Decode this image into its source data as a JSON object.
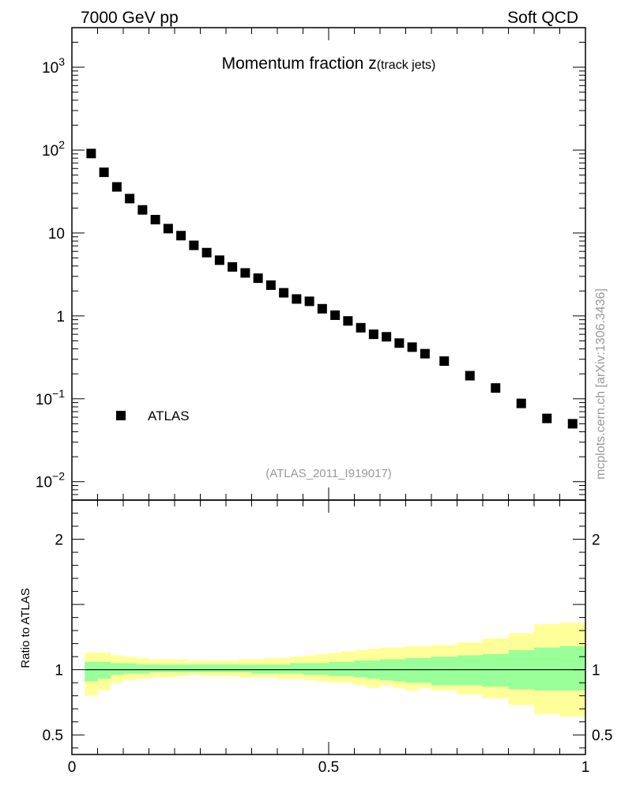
{
  "header": {
    "left_label": "7000 GeV pp",
    "right_label": "Soft QCD"
  },
  "side_label": "mcplots.cern.ch [arXiv:1306.3436]",
  "chart_data": [
    {
      "type": "scatter",
      "title_main": "Momentum fraction ",
      "title_var": "z",
      "title_sub": "(track jets)",
      "analysis_id": "(ATLAS_2011_I919017)",
      "yscale": "log",
      "xlim": [
        0,
        1
      ],
      "ylim": [
        0.006,
        3000
      ],
      "y_ticks": [
        {
          "value": 0.01,
          "base": "10",
          "exp": "−2"
        },
        {
          "value": 0.1,
          "base": "10",
          "exp": "−1"
        },
        {
          "value": 1,
          "base": "1",
          "exp": ""
        },
        {
          "value": 10,
          "base": "10",
          "exp": ""
        },
        {
          "value": 100,
          "base": "10",
          "exp": "2"
        },
        {
          "value": 1000,
          "base": "10",
          "exp": "3"
        }
      ],
      "series": [
        {
          "name": "ATLAS",
          "color": "#000000",
          "marker": "square",
          "x": [
            0.0375,
            0.0625,
            0.0875,
            0.1125,
            0.1375,
            0.1625,
            0.1875,
            0.2125,
            0.2375,
            0.2625,
            0.2875,
            0.3125,
            0.3375,
            0.3625,
            0.3875,
            0.4125,
            0.4375,
            0.4625,
            0.4875,
            0.5125,
            0.5375,
            0.5625,
            0.5875,
            0.6125,
            0.6375,
            0.6625,
            0.6875,
            0.725,
            0.775,
            0.825,
            0.875,
            0.925,
            0.975
          ],
          "y": [
            91,
            54,
            36,
            26,
            19,
            14.5,
            11.3,
            9.3,
            7.1,
            5.8,
            4.7,
            3.9,
            3.3,
            2.85,
            2.35,
            1.9,
            1.6,
            1.5,
            1.22,
            1.02,
            0.87,
            0.72,
            0.6,
            0.56,
            0.47,
            0.42,
            0.35,
            0.285,
            0.19,
            0.135,
            0.088,
            0.058,
            0.05
          ]
        }
      ],
      "legend": "bottom-left"
    },
    {
      "type": "area",
      "ylabel": "Ratio to ATLAS",
      "xlim": [
        0,
        1
      ],
      "ylim": [
        0.35,
        2.3
      ],
      "x_ticks": [
        "0",
        "0.5",
        "1"
      ],
      "y_ticks": [
        "0.5",
        "1",
        "2"
      ],
      "reference_line": 1,
      "bin_edges": [
        0.025,
        0.05,
        0.075,
        0.1,
        0.125,
        0.15,
        0.175,
        0.2,
        0.225,
        0.25,
        0.275,
        0.3,
        0.325,
        0.35,
        0.375,
        0.4,
        0.425,
        0.45,
        0.475,
        0.5,
        0.525,
        0.55,
        0.575,
        0.6,
        0.625,
        0.65,
        0.675,
        0.7,
        0.75,
        0.8,
        0.85,
        0.9,
        0.95,
        1.0
      ],
      "bands": [
        {
          "name": "total uncertainty",
          "color": "#ffff99",
          "lower": [
            0.8,
            0.84,
            0.9,
            0.92,
            0.93,
            0.94,
            0.94,
            0.95,
            0.96,
            0.95,
            0.95,
            0.95,
            0.94,
            0.94,
            0.94,
            0.93,
            0.93,
            0.92,
            0.91,
            0.9,
            0.9,
            0.88,
            0.86,
            0.88,
            0.86,
            0.84,
            0.86,
            0.84,
            0.81,
            0.78,
            0.73,
            0.66,
            0.64
          ],
          "upper": [
            1.13,
            1.13,
            1.11,
            1.1,
            1.09,
            1.08,
            1.08,
            1.08,
            1.07,
            1.07,
            1.07,
            1.07,
            1.08,
            1.08,
            1.09,
            1.09,
            1.1,
            1.11,
            1.12,
            1.13,
            1.14,
            1.15,
            1.16,
            1.17,
            1.17,
            1.18,
            1.18,
            1.19,
            1.21,
            1.24,
            1.28,
            1.35,
            1.36
          ]
        },
        {
          "name": "stat uncertainty",
          "color": "#99ff99",
          "lower": [
            0.91,
            0.93,
            0.96,
            0.97,
            0.97,
            0.98,
            0.98,
            0.98,
            0.98,
            0.98,
            0.98,
            0.98,
            0.98,
            0.97,
            0.97,
            0.97,
            0.97,
            0.96,
            0.96,
            0.95,
            0.95,
            0.94,
            0.93,
            0.92,
            0.91,
            0.9,
            0.9,
            0.88,
            0.88,
            0.87,
            0.85,
            0.84,
            0.84
          ],
          "upper": [
            1.06,
            1.06,
            1.05,
            1.05,
            1.04,
            1.04,
            1.04,
            1.04,
            1.04,
            1.04,
            1.04,
            1.04,
            1.04,
            1.04,
            1.04,
            1.04,
            1.05,
            1.05,
            1.05,
            1.06,
            1.06,
            1.07,
            1.07,
            1.08,
            1.08,
            1.09,
            1.09,
            1.1,
            1.11,
            1.12,
            1.15,
            1.17,
            1.18
          ]
        }
      ]
    }
  ]
}
